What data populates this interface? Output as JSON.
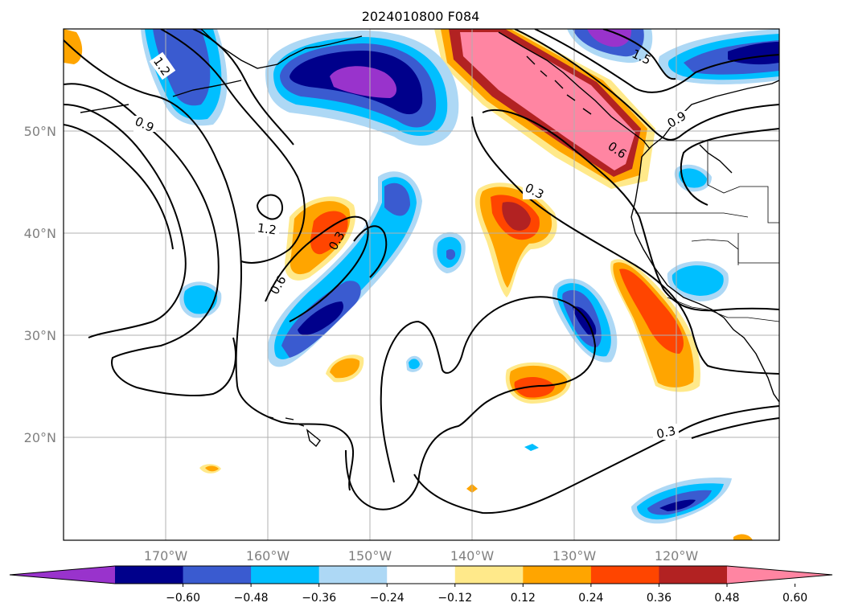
{
  "title": "2024010800 F084",
  "map": {
    "lon_ticks": [
      "170°W",
      "160°W",
      "150°W",
      "140°W",
      "130°W",
      "120°W"
    ],
    "lat_ticks": [
      "50°N",
      "40°N",
      "30°N",
      "20°N"
    ]
  },
  "contour_labels": [
    {
      "text": "1.2",
      "id": "ul"
    },
    {
      "text": "0.9",
      "id": "l"
    },
    {
      "text": "1.2",
      "id": "c"
    },
    {
      "text": "0.6",
      "id": "c6"
    },
    {
      "text": "0.3",
      "id": "c3"
    },
    {
      "text": "0.3",
      "id": "n3"
    },
    {
      "text": "0.6",
      "id": "ne6"
    },
    {
      "text": "0.9",
      "id": "ne9"
    },
    {
      "text": "1.5",
      "id": "ne15"
    },
    {
      "text": "0.3",
      "id": "s3"
    }
  ],
  "colorbar": {
    "colors": [
      "#9933cc",
      "#00008b",
      "#3a5bd0",
      "#00bfff",
      "#add8f5",
      "#ffffff",
      "#ffe98a",
      "#ffa500",
      "#ff4500",
      "#b22222",
      "#ff85a2"
    ],
    "tick_labels": [
      "−0.60",
      "−0.48",
      "−0.36",
      "−0.24",
      "−0.12",
      "0.12",
      "0.24",
      "0.36",
      "0.48",
      "0.60"
    ]
  }
}
